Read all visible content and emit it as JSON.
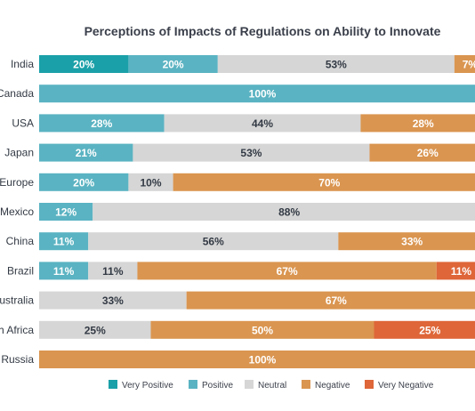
{
  "chart_data": {
    "type": "bar",
    "orientation": "horizontal",
    "stacked": true,
    "title": "Perceptions of Impacts of Regulations on Ability to Innovate",
    "categories": [
      "India",
      "Canada",
      "USA",
      "Japan",
      "Europe",
      "Mexico",
      "China",
      "Brazil",
      "Australia",
      "South Africa",
      "Russia"
    ],
    "series": [
      {
        "name": "Very Positive",
        "color": "#1aa0a8",
        "values": [
          20,
          0,
          0,
          0,
          0,
          0,
          0,
          0,
          0,
          0,
          0
        ]
      },
      {
        "name": "Positive",
        "color": "#5ab3c2",
        "values": [
          20,
          100,
          28,
          21,
          20,
          12,
          11,
          11,
          0,
          0,
          0
        ]
      },
      {
        "name": "Neutral",
        "color": "#d6d6d6",
        "values": [
          53,
          0,
          44,
          53,
          10,
          88,
          56,
          11,
          33,
          25,
          0
        ]
      },
      {
        "name": "Negative",
        "color": "#da9550",
        "values": [
          7,
          0,
          28,
          26,
          70,
          0,
          33,
          67,
          67,
          50,
          100
        ]
      },
      {
        "name": "Very Negative",
        "color": "#de6638",
        "values": [
          0,
          0,
          0,
          0,
          0,
          0,
          0,
          11,
          0,
          25,
          0
        ]
      }
    ],
    "value_suffix": "%",
    "xlim": [
      0,
      100
    ],
    "grid": false,
    "legend": "bottom"
  }
}
